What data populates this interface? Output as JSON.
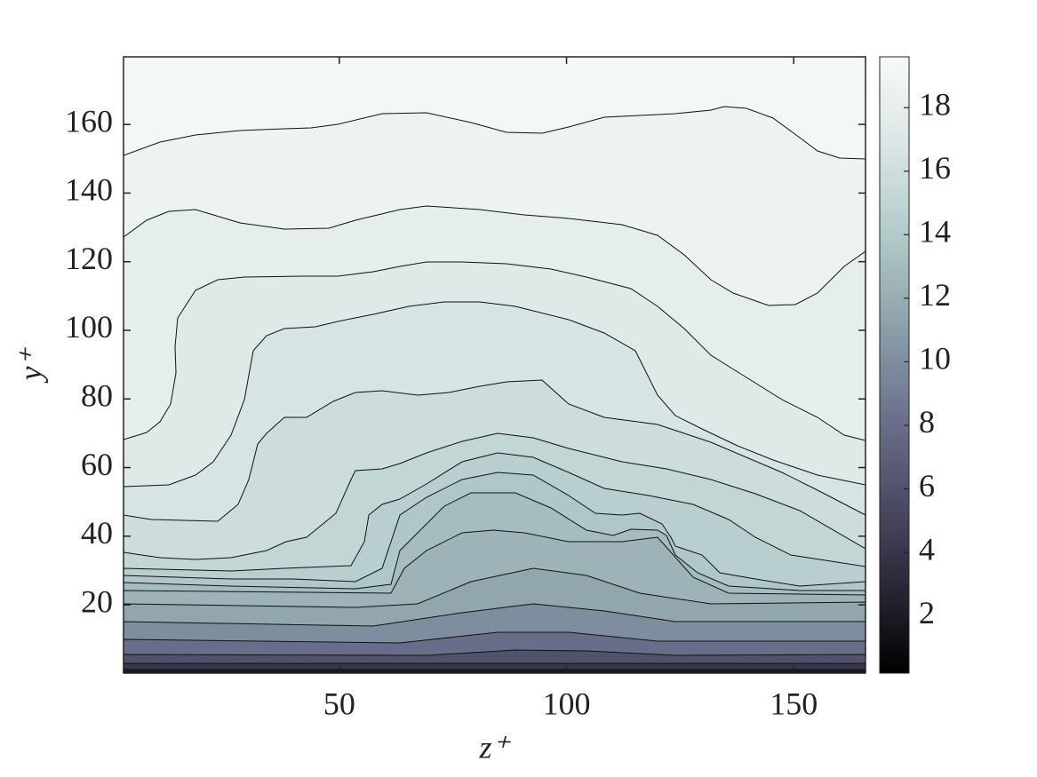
{
  "chart_data": {
    "type": "contour",
    "xlabel": "z⁺",
    "ylabel": "y⁺",
    "xlim": [
      2.5,
      165.8
    ],
    "xticks": [
      50,
      100,
      150
    ],
    "ylim": [
      0.1,
      179.7
    ],
    "yticks": [
      20,
      40,
      60,
      80,
      100,
      120,
      140,
      160
    ],
    "clim": [
      0.2,
      19.6
    ],
    "cticks": [
      2,
      4,
      6,
      8,
      10,
      12,
      14,
      16,
      18
    ],
    "colormap": [
      "#000000",
      "#2a2838",
      "#4f4e68",
      "#6e7590",
      "#8ea3ab",
      "#b3cbcb",
      "#d9e6e5",
      "#f7f9f9"
    ],
    "levels": [
      19.3,
      18.7,
      18.0,
      17.3,
      16.6,
      15.9,
      15.2,
      14.5,
      13.8,
      13.1,
      12.4,
      11.5,
      10,
      8,
      6,
      4,
      2
    ]
  }
}
